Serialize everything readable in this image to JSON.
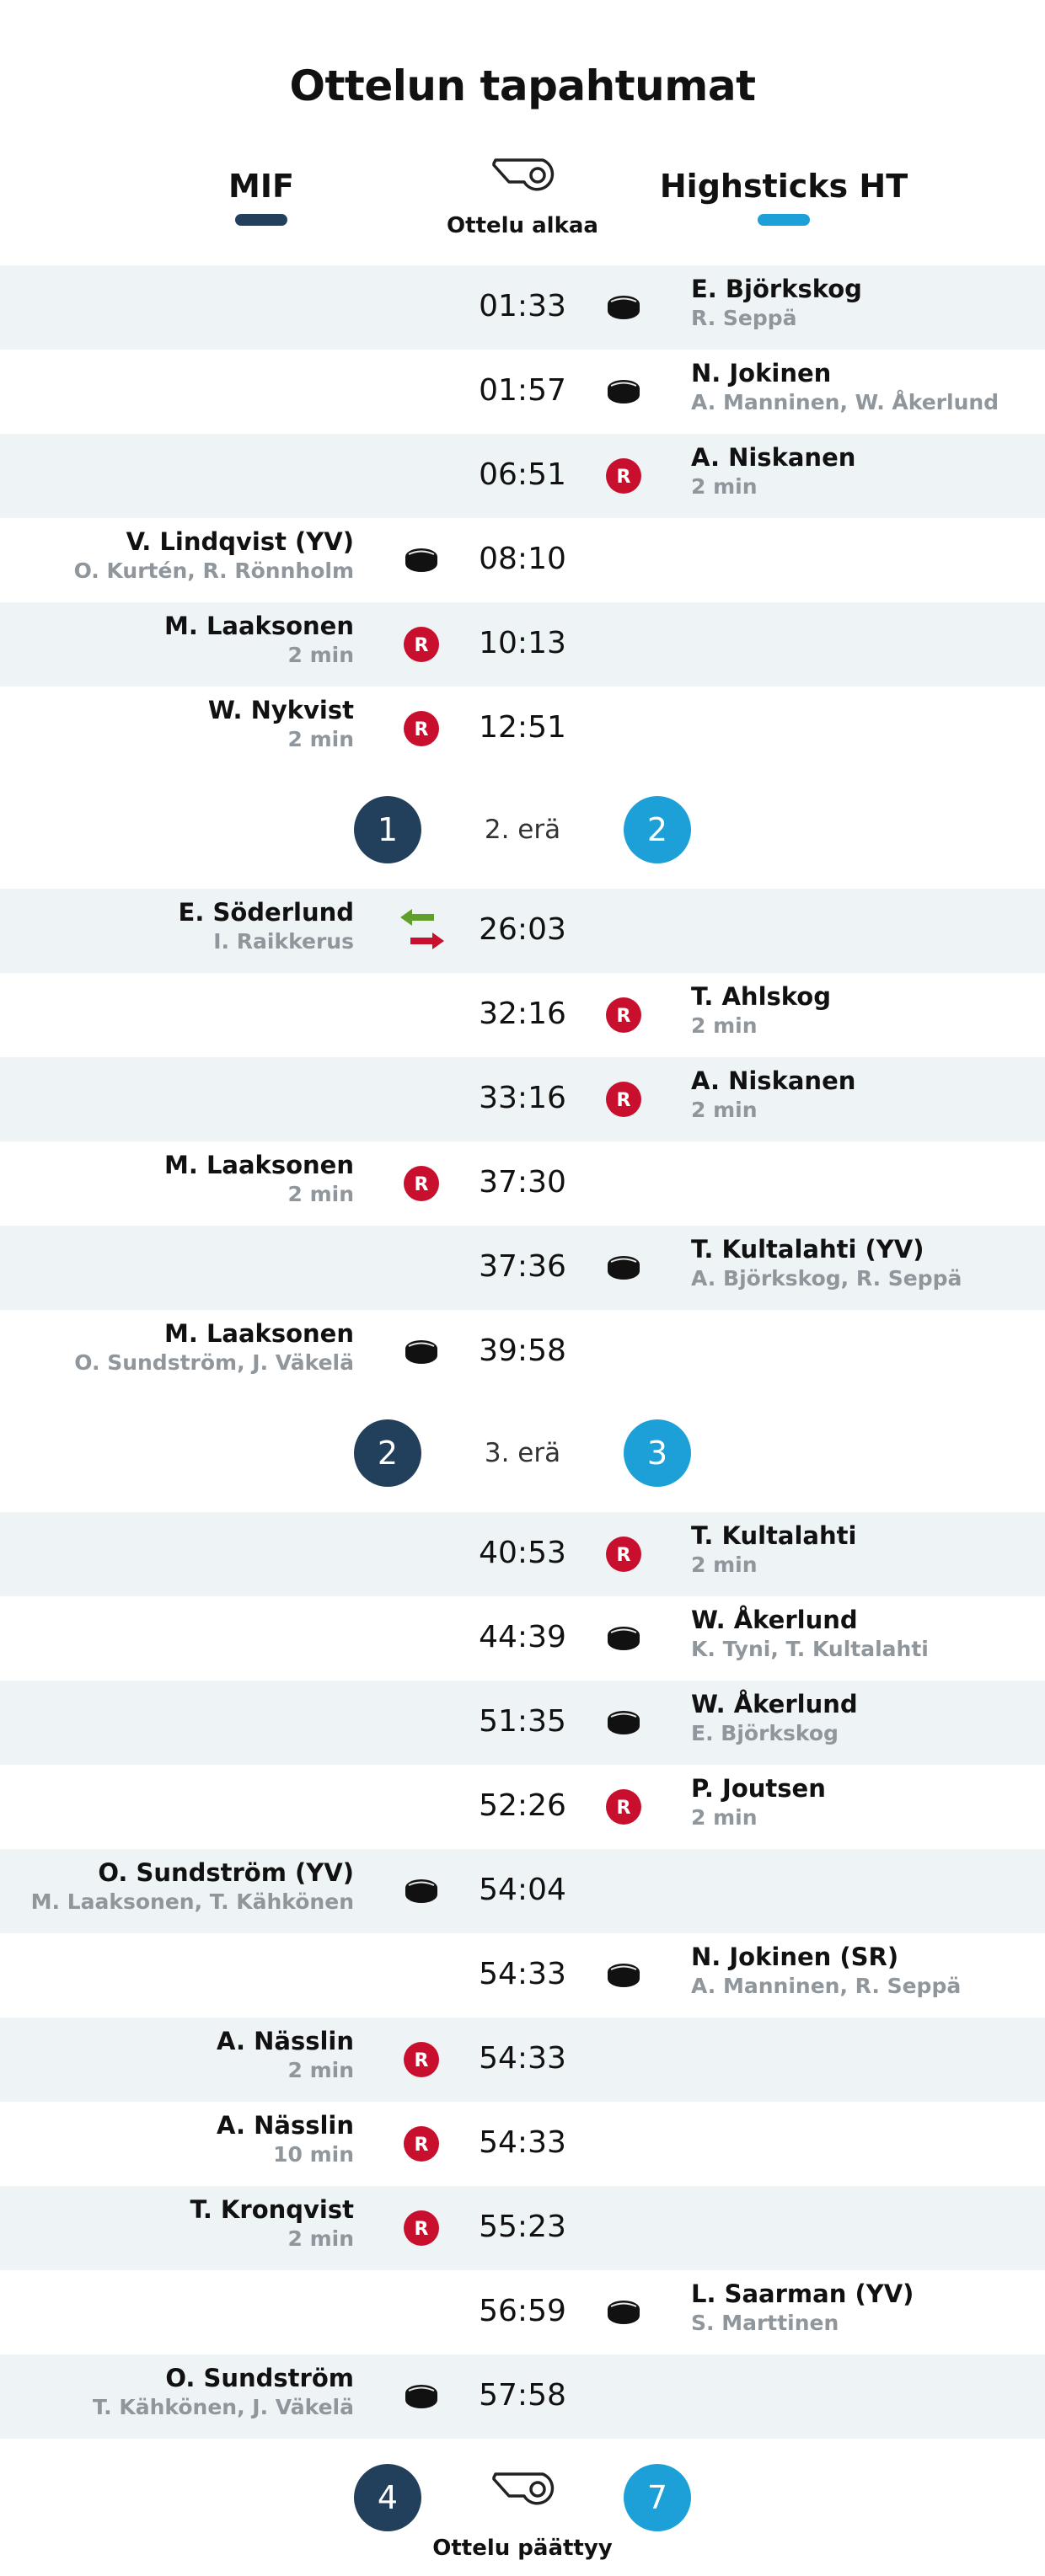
{
  "title": "Ottelun tapahtumat",
  "home_team": {
    "name": "MIF",
    "color": "#22405c"
  },
  "away_team": {
    "name": "Highsticks HT",
    "color": "#1da0d8"
  },
  "start_label": "Ottelu alkaa",
  "end_label": "Ottelu päättyy",
  "colors": {
    "row_shade": "#eef3f6",
    "penalty_badge": "#c8102e",
    "sub_text": "#8f969c"
  },
  "periods": [
    {
      "events": [
        {
          "time": "01:33",
          "side": "away",
          "type": "goal",
          "player": "E. Björkskog",
          "detail": "R. Seppä"
        },
        {
          "time": "01:57",
          "side": "away",
          "type": "goal",
          "player": "N. Jokinen",
          "detail": "A. Manninen, W. Åkerlund"
        },
        {
          "time": "06:51",
          "side": "away",
          "type": "penalty",
          "player": "A. Niskanen",
          "detail": "2 min"
        },
        {
          "time": "08:10",
          "side": "home",
          "type": "goal",
          "player": "V. Lindqvist (YV)",
          "detail": "O. Kurtén, R. Rönnholm"
        },
        {
          "time": "10:13",
          "side": "home",
          "type": "penalty",
          "player": "M. Laaksonen",
          "detail": "2 min"
        },
        {
          "time": "12:51",
          "side": "home",
          "type": "penalty",
          "player": "W. Nykvist",
          "detail": "2 min"
        }
      ],
      "summary": {
        "home": "1",
        "away": "2",
        "label": "2. erä"
      }
    },
    {
      "events": [
        {
          "time": "26:03",
          "side": "home",
          "type": "substitution",
          "player": "E. Söderlund",
          "detail": "I. Raikkerus"
        },
        {
          "time": "32:16",
          "side": "away",
          "type": "penalty",
          "player": "T. Ahlskog",
          "detail": "2 min"
        },
        {
          "time": "33:16",
          "side": "away",
          "type": "penalty",
          "player": "A. Niskanen",
          "detail": "2 min"
        },
        {
          "time": "37:30",
          "side": "home",
          "type": "penalty",
          "player": "M. Laaksonen",
          "detail": "2 min"
        },
        {
          "time": "37:36",
          "side": "away",
          "type": "goal",
          "player": "T. Kultalahti (YV)",
          "detail": "A. Björkskog, R. Seppä"
        },
        {
          "time": "39:58",
          "side": "home",
          "type": "goal",
          "player": "M. Laaksonen",
          "detail": "O. Sundström, J. Väkelä"
        }
      ],
      "summary": {
        "home": "2",
        "away": "3",
        "label": "3. erä"
      }
    },
    {
      "events": [
        {
          "time": "40:53",
          "side": "away",
          "type": "penalty",
          "player": "T. Kultalahti",
          "detail": "2 min"
        },
        {
          "time": "44:39",
          "side": "away",
          "type": "goal",
          "player": "W. Åkerlund",
          "detail": "K. Tyni, T. Kultalahti"
        },
        {
          "time": "51:35",
          "side": "away",
          "type": "goal",
          "player": "W. Åkerlund",
          "detail": "E. Björkskog"
        },
        {
          "time": "52:26",
          "side": "away",
          "type": "penalty",
          "player": "P. Joutsen",
          "detail": "2 min"
        },
        {
          "time": "54:04",
          "side": "home",
          "type": "goal",
          "player": "O. Sundström (YV)",
          "detail": "M. Laaksonen, T. Kähkönen"
        },
        {
          "time": "54:33",
          "side": "away",
          "type": "goal",
          "player": "N. Jokinen (SR)",
          "detail": "A. Manninen, R. Seppä"
        },
        {
          "time": "54:33",
          "side": "home",
          "type": "penalty",
          "player": "A. Nässlin",
          "detail": "2 min"
        },
        {
          "time": "54:33",
          "side": "home",
          "type": "penalty",
          "player": "A. Nässlin",
          "detail": "10 min"
        },
        {
          "time": "55:23",
          "side": "home",
          "type": "penalty",
          "player": "T. Kronqvist",
          "detail": "2 min"
        },
        {
          "time": "56:59",
          "side": "away",
          "type": "goal",
          "player": "L. Saarman (YV)",
          "detail": "S. Marttinen"
        },
        {
          "time": "57:58",
          "side": "home",
          "type": "goal",
          "player": "O. Sundström",
          "detail": "T. Kähkönen, J. Väkelä"
        }
      ],
      "final": {
        "home": "4",
        "away": "7"
      }
    }
  ],
  "icons": {
    "goal": "puck-icon",
    "penalty": "penalty-r-icon",
    "substitution": "substitution-arrows-icon",
    "start": "whistle-icon"
  },
  "penalty_letter": "R"
}
